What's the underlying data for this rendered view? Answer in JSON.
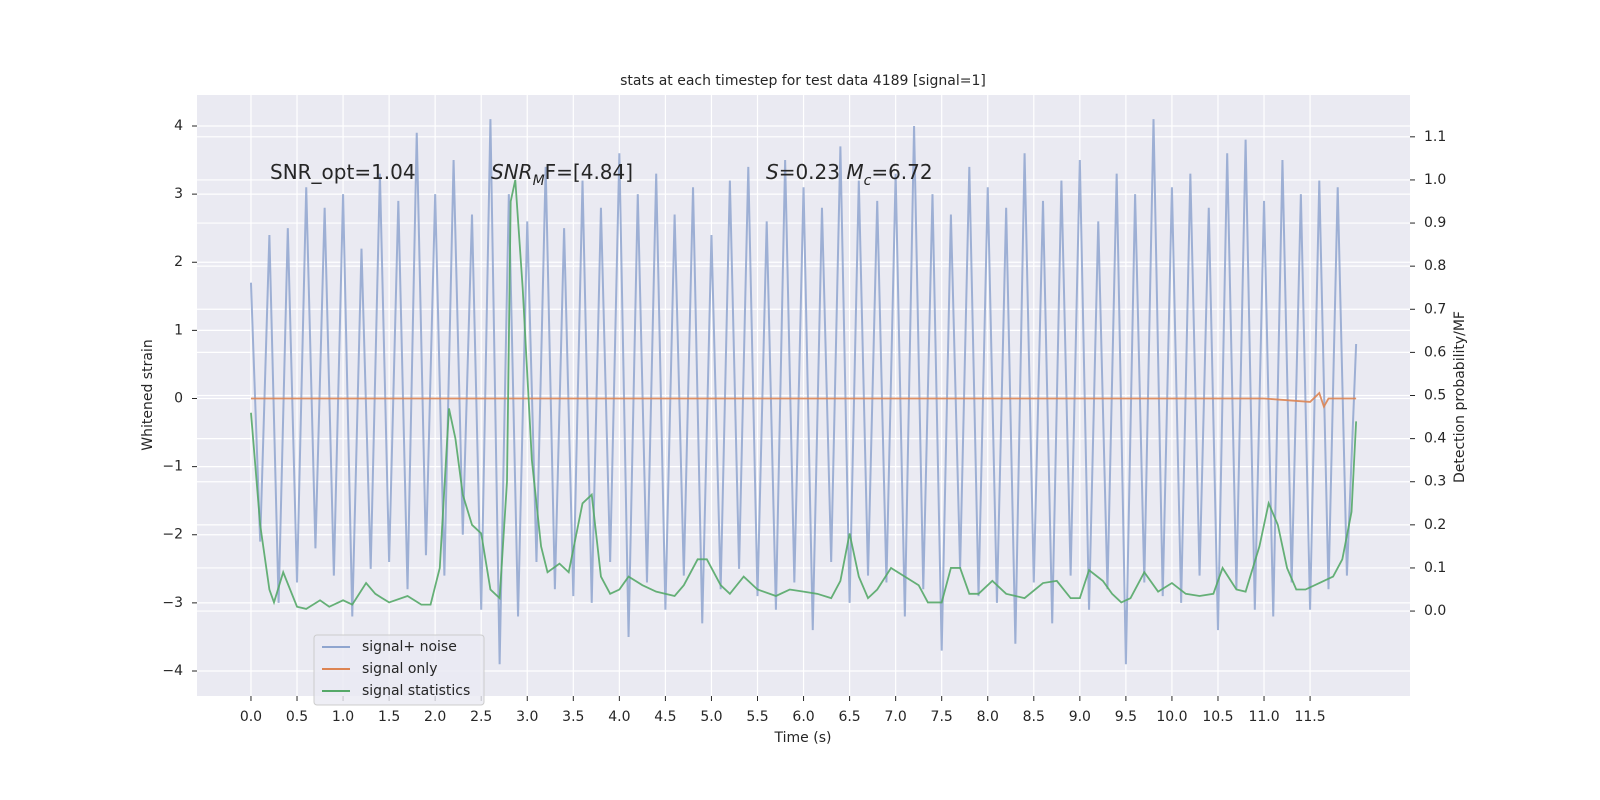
{
  "chart_data": {
    "type": "line",
    "title": "stats at each timestep for test data 4189 [signal=1]",
    "x_label": "Time (s)",
    "y_label": "Whitened strain",
    "y2_label": "Detection probability/MF",
    "xlim": [
      -0.586,
      12.585
    ],
    "ylim": [
      -4.367,
      4.455
    ],
    "y2lim": [
      -0.197,
      1.197
    ],
    "xticks": [
      {
        "value": 0,
        "label": "0.0"
      },
      {
        "value": 0.5,
        "label": "0.5"
      },
      {
        "value": 1,
        "label": "1.0"
      },
      {
        "value": 1.5,
        "label": "1.5"
      },
      {
        "value": 2,
        "label": "2.0"
      },
      {
        "value": 2.5,
        "label": "2.5"
      },
      {
        "value": 3,
        "label": "3.0"
      },
      {
        "value": 3.5,
        "label": "3.5"
      },
      {
        "value": 4,
        "label": "4.0"
      },
      {
        "value": 4.5,
        "label": "4.5"
      },
      {
        "value": 5,
        "label": "5.0"
      },
      {
        "value": 5.5,
        "label": "5.5"
      },
      {
        "value": 6,
        "label": "6.0"
      },
      {
        "value": 6.5,
        "label": "6.5"
      },
      {
        "value": 7,
        "label": "7.0"
      },
      {
        "value": 7.5,
        "label": "7.5"
      },
      {
        "value": 8,
        "label": "8.0"
      },
      {
        "value": 8.5,
        "label": "8.5"
      },
      {
        "value": 9,
        "label": "9.0"
      },
      {
        "value": 9.5,
        "label": "9.5"
      },
      {
        "value": 10,
        "label": "10.0"
      },
      {
        "value": 10.5,
        "label": "10.5"
      },
      {
        "value": 11,
        "label": "11.0"
      },
      {
        "value": 11.5,
        "label": "11.5"
      }
    ],
    "yticks": [
      {
        "value": -4,
        "label": "−4"
      },
      {
        "value": -3,
        "label": "−3"
      },
      {
        "value": -2,
        "label": "−2"
      },
      {
        "value": -1,
        "label": "−1"
      },
      0,
      1,
      2,
      3,
      4
    ],
    "y2ticks": [
      {
        "value": 0,
        "label": "0.0"
      },
      {
        "value": 0.1,
        "label": "0.1"
      },
      {
        "value": 0.2,
        "label": "0.2"
      },
      {
        "value": 0.3,
        "label": "0.3"
      },
      {
        "value": 0.4,
        "label": "0.4"
      },
      {
        "value": 0.5,
        "label": "0.5"
      },
      {
        "value": 0.6,
        "label": "0.6"
      },
      {
        "value": 0.7,
        "label": "0.7"
      },
      {
        "value": 0.8,
        "label": "0.8"
      },
      {
        "value": 0.9,
        "label": "0.9"
      },
      {
        "value": 1,
        "label": "1.0"
      },
      {
        "value": 1.1,
        "label": "1.1"
      }
    ],
    "grid": true,
    "legend_position": "lower left",
    "annotations": [
      {
        "parts": [
          "SNR_opt=1.04"
        ]
      },
      {
        "parts": [
          "SNR",
          "M",
          "F=[4.84]"
        ]
      },
      {
        "parts": [
          "S",
          "=0.23   ",
          "M",
          "c",
          "=6.72"
        ]
      }
    ],
    "series": [
      {
        "name": "signal+ noise",
        "color": "#8fa5cf",
        "x": [
          0.0,
          0.1,
          0.2,
          0.3,
          0.4,
          0.5,
          0.6,
          0.7,
          0.8,
          0.9,
          1.0,
          1.1,
          1.2,
          1.3,
          1.4,
          1.5,
          1.6,
          1.7,
          1.8,
          1.9,
          2.0,
          2.1,
          2.2,
          2.3,
          2.4,
          2.5,
          2.6,
          2.7,
          2.8,
          2.9,
          3.0,
          3.1,
          3.2,
          3.3,
          3.4,
          3.5,
          3.6,
          3.7,
          3.8,
          3.9,
          4.0,
          4.1,
          4.2,
          4.3,
          4.4,
          4.5,
          4.6,
          4.7,
          4.8,
          4.9,
          5.0,
          5.1,
          5.2,
          5.3,
          5.4,
          5.5,
          5.6,
          5.7,
          5.8,
          5.9,
          6.0,
          6.1,
          6.2,
          6.3,
          6.4,
          6.5,
          6.6,
          6.7,
          6.8,
          6.9,
          7.0,
          7.1,
          7.2,
          7.3,
          7.4,
          7.5,
          7.6,
          7.7,
          7.8,
          7.9,
          8.0,
          8.1,
          8.2,
          8.3,
          8.4,
          8.5,
          8.6,
          8.7,
          8.8,
          8.9,
          9.0,
          9.1,
          9.2,
          9.3,
          9.4,
          9.5,
          9.6,
          9.7,
          9.8,
          9.9,
          10.0,
          10.1,
          10.2,
          10.3,
          10.4,
          10.5,
          10.6,
          10.7,
          10.8,
          10.9,
          11.0,
          11.1,
          11.2,
          11.3,
          11.4,
          11.5,
          11.6,
          11.7,
          11.8,
          11.9,
          12.0
        ],
        "values": [
          1.7,
          -2.1,
          2.4,
          -3.0,
          2.5,
          -2.7,
          3.1,
          -2.2,
          2.8,
          -2.6,
          3.0,
          -3.2,
          2.2,
          -2.5,
          3.3,
          -2.4,
          2.9,
          -2.8,
          3.9,
          -2.3,
          3.0,
          -2.6,
          3.5,
          -2.0,
          2.7,
          -3.1,
          4.1,
          -3.9,
          3.0,
          -3.2,
          2.6,
          -2.4,
          3.4,
          -2.8,
          2.5,
          -2.9,
          3.2,
          -3.0,
          2.8,
          -2.4,
          3.6,
          -3.5,
          3.0,
          -2.7,
          3.3,
          -3.1,
          2.7,
          -2.6,
          3.1,
          -3.3,
          2.4,
          -2.8,
          3.2,
          -2.5,
          3.4,
          -2.9,
          2.6,
          -3.1,
          3.5,
          -2.7,
          3.1,
          -3.4,
          2.8,
          -2.4,
          3.7,
          -3.0,
          3.2,
          -2.6,
          2.9,
          -2.7,
          3.3,
          -3.2,
          4.0,
          -2.8,
          3.0,
          -3.7,
          2.7,
          -2.5,
          3.4,
          -2.9,
          3.1,
          -3.0,
          2.8,
          -3.6,
          3.6,
          -2.7,
          2.9,
          -3.3,
          3.2,
          -2.6,
          3.5,
          -3.1,
          2.6,
          -2.8,
          3.3,
          -3.9,
          3.0,
          -2.7,
          4.1,
          -2.9,
          3.1,
          -3.0,
          3.3,
          -2.6,
          2.8,
          -3.4,
          3.6,
          -2.8,
          3.8,
          -3.1,
          2.9,
          -3.2,
          3.5,
          -2.7,
          3.0,
          -3.1,
          3.2,
          -2.8,
          3.1,
          -2.6,
          0.8
        ]
      },
      {
        "name": "signal only",
        "color": "#dd8452",
        "x": [
          0.0,
          11.0,
          11.5,
          11.6,
          11.65,
          11.7,
          12.0
        ],
        "values": [
          0,
          0,
          -0.05,
          0.08,
          -0.12,
          0,
          0
        ]
      },
      {
        "name": "signal statistics",
        "color": "#55a868",
        "axis": "y2",
        "x": [
          0,
          0.1,
          0.2,
          0.25,
          0.35,
          0.5,
          0.6,
          0.75,
          0.85,
          1.0,
          1.1,
          1.25,
          1.35,
          1.5,
          1.7,
          1.85,
          1.95,
          2.05,
          2.15,
          2.22,
          2.3,
          2.4,
          2.5,
          2.6,
          2.7,
          2.78,
          2.82,
          2.87,
          2.95,
          3.05,
          3.15,
          3.22,
          3.35,
          3.45,
          3.6,
          3.7,
          3.8,
          3.9,
          4.0,
          4.1,
          4.25,
          4.4,
          4.6,
          4.7,
          4.85,
          4.95,
          5.1,
          5.2,
          5.35,
          5.5,
          5.7,
          5.85,
          6.0,
          6.15,
          6.3,
          6.4,
          6.5,
          6.6,
          6.7,
          6.8,
          6.95,
          7.1,
          7.25,
          7.35,
          7.5,
          7.6,
          7.7,
          7.8,
          7.9,
          8.05,
          8.2,
          8.4,
          8.6,
          8.75,
          8.9,
          9.0,
          9.1,
          9.25,
          9.35,
          9.45,
          9.55,
          9.7,
          9.85,
          10.0,
          10.15,
          10.3,
          10.45,
          10.55,
          10.7,
          10.8,
          10.95,
          11.05,
          11.15,
          11.25,
          11.35,
          11.45,
          11.6,
          11.75,
          11.85,
          11.95,
          12.0
        ],
        "values": [
          0.46,
          0.2,
          0.05,
          0.02,
          0.09,
          0.01,
          0.005,
          0.025,
          0.01,
          0.025,
          0.015,
          0.065,
          0.04,
          0.02,
          0.035,
          0.015,
          0.015,
          0.1,
          0.47,
          0.4,
          0.27,
          0.2,
          0.18,
          0.05,
          0.03,
          0.3,
          0.95,
          1.0,
          0.75,
          0.35,
          0.15,
          0.09,
          0.11,
          0.09,
          0.25,
          0.27,
          0.08,
          0.04,
          0.05,
          0.08,
          0.06,
          0.045,
          0.035,
          0.06,
          0.12,
          0.12,
          0.06,
          0.04,
          0.08,
          0.05,
          0.035,
          0.05,
          0.045,
          0.04,
          0.03,
          0.07,
          0.18,
          0.08,
          0.03,
          0.05,
          0.1,
          0.08,
          0.06,
          0.02,
          0.02,
          0.1,
          0.1,
          0.04,
          0.04,
          0.07,
          0.04,
          0.03,
          0.065,
          0.07,
          0.03,
          0.03,
          0.095,
          0.07,
          0.04,
          0.02,
          0.03,
          0.09,
          0.045,
          0.065,
          0.04,
          0.035,
          0.04,
          0.1,
          0.05,
          0.045,
          0.15,
          0.25,
          0.2,
          0.1,
          0.05,
          0.05,
          0.065,
          0.08,
          0.12,
          0.23,
          0.44
        ]
      }
    ]
  }
}
